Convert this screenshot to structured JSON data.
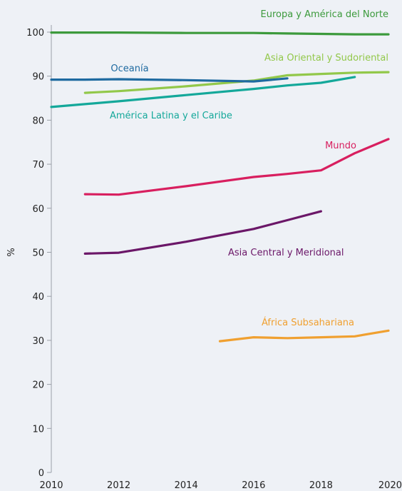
{
  "chart_data": {
    "type": "line",
    "ylabel": "%",
    "xlim": [
      2010,
      2020
    ],
    "ylim": [
      0,
      100
    ],
    "x_ticks": [
      2010,
      2012,
      2014,
      2016,
      2018,
      2020
    ],
    "y_ticks": [
      0,
      10,
      20,
      30,
      40,
      50,
      60,
      70,
      80,
      90,
      100
    ],
    "grid": false,
    "legend": "inline-labels",
    "series": [
      {
        "name": "Europa y América del Norte",
        "color": "#3c9a3c",
        "x": [
          2010,
          2012,
          2014,
          2016,
          2017,
          2018,
          2019,
          2020
        ],
        "y": [
          99.9,
          99.9,
          99.8,
          99.8,
          99.7,
          99.6,
          99.5,
          99.5
        ]
      },
      {
        "name": "Asia Oriental y Sudoriental",
        "color": "#92c84a",
        "x": [
          2011,
          2012,
          2014,
          2016,
          2017,
          2018,
          2019,
          2020
        ],
        "y": [
          86.2,
          86.6,
          87.7,
          89.0,
          90.2,
          90.5,
          90.8,
          90.9
        ]
      },
      {
        "name": "Oceanía",
        "color": "#1e6aa0",
        "x": [
          2010,
          2011,
          2012,
          2014,
          2016,
          2017
        ],
        "y": [
          89.2,
          89.2,
          89.3,
          89.1,
          88.8,
          89.5
        ]
      },
      {
        "name": "América Latina y el Caribe",
        "color": "#14a89a",
        "x": [
          2010,
          2012,
          2014,
          2016,
          2017,
          2018,
          2019
        ],
        "y": [
          83.0,
          84.3,
          85.7,
          87.1,
          87.9,
          88.5,
          89.8
        ]
      },
      {
        "name": "Mundo",
        "color": "#d81f5f",
        "x": [
          2011,
          2012,
          2014,
          2016,
          2017,
          2018,
          2019,
          2020
        ],
        "y": [
          63.2,
          63.1,
          65.0,
          67.1,
          67.8,
          68.6,
          72.5,
          75.7
        ]
      },
      {
        "name": "Asia Central y Meridional",
        "color": "#6b1768",
        "x": [
          2011,
          2012,
          2014,
          2016,
          2017,
          2018
        ],
        "y": [
          49.7,
          49.9,
          52.4,
          55.3,
          57.3,
          59.3
        ]
      },
      {
        "name": "África Subsahariana",
        "color": "#f0a030",
        "x": [
          2015,
          2016,
          2017,
          2018,
          2019,
          2020
        ],
        "y": [
          29.8,
          30.7,
          30.5,
          30.7,
          30.9,
          32.2
        ]
      }
    ]
  }
}
